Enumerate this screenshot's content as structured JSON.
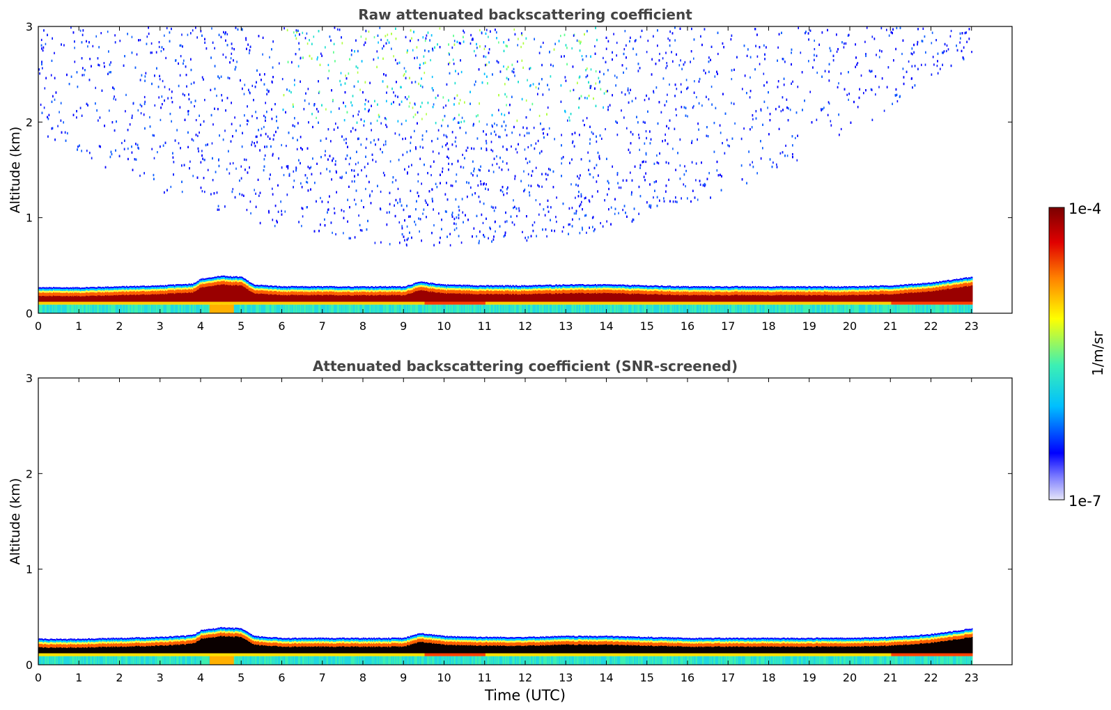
{
  "chart_data": [
    {
      "type": "heatmap",
      "title": "Raw attenuated backscattering coefficient",
      "xlabel": "",
      "ylabel": "Altitude (km)",
      "xlim": [
        0,
        24
      ],
      "ylim": [
        0,
        3
      ],
      "x_ticks": [
        "0",
        "1",
        "2",
        "3",
        "4",
        "5",
        "6",
        "7",
        "8",
        "9",
        "10",
        "11",
        "12",
        "13",
        "14",
        "15",
        "16",
        "17",
        "18",
        "19",
        "20",
        "21",
        "22",
        "23"
      ],
      "y_ticks": [
        "0",
        "1",
        "2",
        "3"
      ],
      "data_end_time": 23,
      "boundary_layer_top_km": [
        [
          0,
          0.27
        ],
        [
          1,
          0.27
        ],
        [
          2,
          0.28
        ],
        [
          3,
          0.29
        ],
        [
          3.8,
          0.31
        ],
        [
          4,
          0.36
        ],
        [
          4.5,
          0.39
        ],
        [
          5,
          0.38
        ],
        [
          5.3,
          0.3
        ],
        [
          6,
          0.28
        ],
        [
          7,
          0.28
        ],
        [
          8,
          0.28
        ],
        [
          9,
          0.28
        ],
        [
          9.4,
          0.33
        ],
        [
          10,
          0.3
        ],
        [
          11,
          0.29
        ],
        [
          12,
          0.29
        ],
        [
          13,
          0.3
        ],
        [
          14,
          0.3
        ],
        [
          15,
          0.29
        ],
        [
          16,
          0.28
        ],
        [
          17,
          0.28
        ],
        [
          18,
          0.28
        ],
        [
          19,
          0.28
        ],
        [
          20,
          0.28
        ],
        [
          21,
          0.29
        ],
        [
          22,
          0.32
        ],
        [
          23,
          0.38
        ]
      ],
      "noise_region": {
        "time_start": 0,
        "time_end": 23,
        "max_altitude_km": 3,
        "densest_time": 10
      },
      "grid": false
    },
    {
      "type": "heatmap",
      "title": "Attenuated backscattering coefficient (SNR-screened)",
      "xlabel": "Time (UTC)",
      "ylabel": "Altitude (km)",
      "xlim": [
        0,
        24
      ],
      "ylim": [
        0,
        3
      ],
      "x_ticks": [
        "0",
        "1",
        "2",
        "3",
        "4",
        "5",
        "6",
        "7",
        "8",
        "9",
        "10",
        "11",
        "12",
        "13",
        "14",
        "15",
        "16",
        "17",
        "18",
        "19",
        "20",
        "21",
        "22",
        "23"
      ],
      "y_ticks": [
        "0",
        "1",
        "2",
        "3"
      ],
      "data_end_time": 23,
      "grid": false
    }
  ],
  "colorbar": {
    "label": "1/m/sr",
    "max_label": "1e-4",
    "min_label": "1e-7",
    "scale": "log",
    "colormap": [
      "#e6e6f8",
      "#0000ff",
      "#00bfff",
      "#3cf0b4",
      "#ffff00",
      "#ff8000",
      "#e00000",
      "#7a0000"
    ]
  }
}
